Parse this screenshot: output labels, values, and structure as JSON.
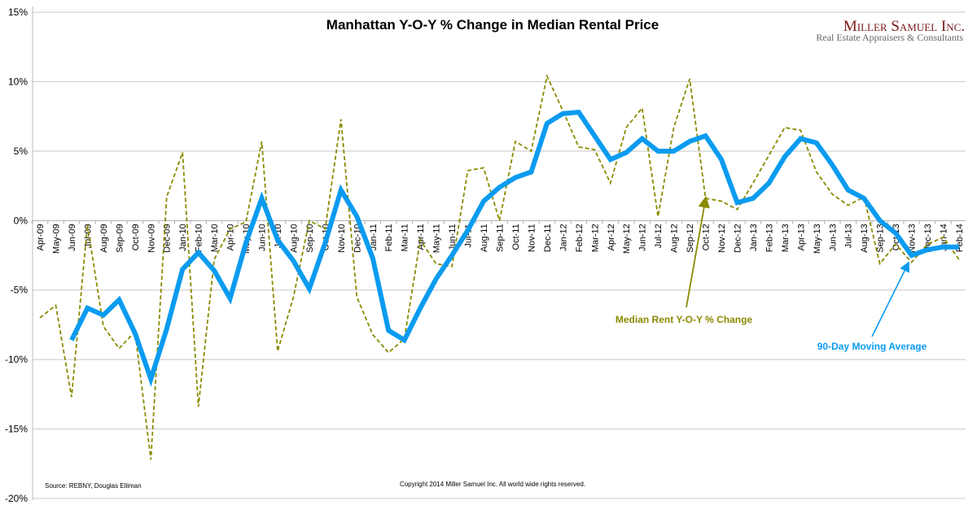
{
  "chart_data": {
    "type": "line",
    "title": "Manhattan Y-O-Y % Change in Median Rental Price",
    "xlabel": "",
    "ylabel": "",
    "ylim": [
      -20,
      15
    ],
    "yticks": [
      15,
      10,
      5,
      0,
      -5,
      -10,
      -15,
      -20
    ],
    "ytick_labels": [
      "15%",
      "10%",
      "5%",
      "0%",
      "-5%",
      "-10%",
      "-15%",
      "-20%"
    ],
    "grid": true,
    "categories": [
      "Apr-09",
      "May-09",
      "Jun-09",
      "Jul-09",
      "Aug-09",
      "Sep-09",
      "Oct-09",
      "Nov-09",
      "Dec-09",
      "Jan-10",
      "Feb-10",
      "Mar-10",
      "Apr-10",
      "May-10",
      "Jun-10",
      "Jul-10",
      "Aug-10",
      "Sep-10",
      "Oct-10",
      "Nov-10",
      "Dec-10",
      "Jan-11",
      "Feb-11",
      "Mar-11",
      "Apr-11",
      "May-11",
      "Jun-11",
      "Jul-11",
      "Aug-11",
      "Sep-11",
      "Oct-11",
      "Nov-11",
      "Dec-11",
      "Jan-12",
      "Feb-12",
      "Mar-12",
      "Apr-12",
      "May-12",
      "Jun-12",
      "Jul-12",
      "Aug-12",
      "Sep-12",
      "Oct-12",
      "Nov-12",
      "Dec-12",
      "Jan-13",
      "Feb-13",
      "Mar-13",
      "Apr-13",
      "May-13",
      "Jun-13",
      "Jul-13",
      "Aug-13",
      "Sep-13",
      "Oct-13",
      "Nov-13",
      "Dec-13",
      "Jan-14",
      "Feb-14"
    ],
    "series": [
      {
        "name": "Median Rent Y-O-Y % Change",
        "color": "#8a8a00",
        "style": "dashed",
        "values": [
          -7.0,
          -6.1,
          -12.7,
          -0.3,
          -7.6,
          -9.2,
          -8.0,
          -17.2,
          1.7,
          4.9,
          -13.4,
          -2.8,
          -0.6,
          -0.1,
          5.7,
          -9.4,
          -5.5,
          0.0,
          -0.6,
          7.3,
          -5.5,
          -8.2,
          -9.5,
          -8.5,
          -1.4,
          -3.1,
          -3.3,
          3.6,
          3.8,
          0.0,
          5.7,
          5.0,
          10.4,
          7.9,
          5.3,
          5.1,
          2.7,
          6.7,
          8.1,
          0.3,
          6.7,
          10.2,
          1.6,
          1.4,
          0.8,
          2.7,
          4.7,
          6.7,
          6.5,
          3.5,
          1.9,
          1.1,
          1.7,
          -3.1,
          -1.7,
          -3.0,
          -1.7,
          -1.2,
          -2.8
        ]
      },
      {
        "name": "90-Day Moving Average",
        "color": "#0a9bf0",
        "style": "solid",
        "values": [
          null,
          null,
          -8.6,
          -6.3,
          -6.8,
          -5.7,
          -8.1,
          -11.4,
          -7.8,
          -3.5,
          -2.3,
          -3.6,
          -5.6,
          -1.6,
          1.6,
          -1.4,
          -2.9,
          -4.9,
          -1.6,
          2.2,
          0.3,
          -2.7,
          -7.9,
          -8.6,
          -6.3,
          -4.2,
          -2.5,
          -0.7,
          1.4,
          2.4,
          3.1,
          3.5,
          7.0,
          7.7,
          7.8,
          6.1,
          4.4,
          4.9,
          5.9,
          5.0,
          5.0,
          5.7,
          6.1,
          4.4,
          1.3,
          1.6,
          2.7,
          4.6,
          5.9,
          5.6,
          4.0,
          2.2,
          1.6,
          0.0,
          -0.9,
          -2.5,
          -2.1,
          -1.9,
          -1.9
        ]
      }
    ],
    "annotations": [
      "Median Rent Y-O-Y % Change",
      "90-Day Moving Average"
    ]
  },
  "logo": {
    "name": "Miller Samuel Inc.",
    "tagline": "Real Estate Appraisers & Consultants"
  },
  "source": "Source: REBNY, Douglas Elliman",
  "copyright": "Copyright 2014 Miller Samuel Inc.  All world wide rights reserved."
}
